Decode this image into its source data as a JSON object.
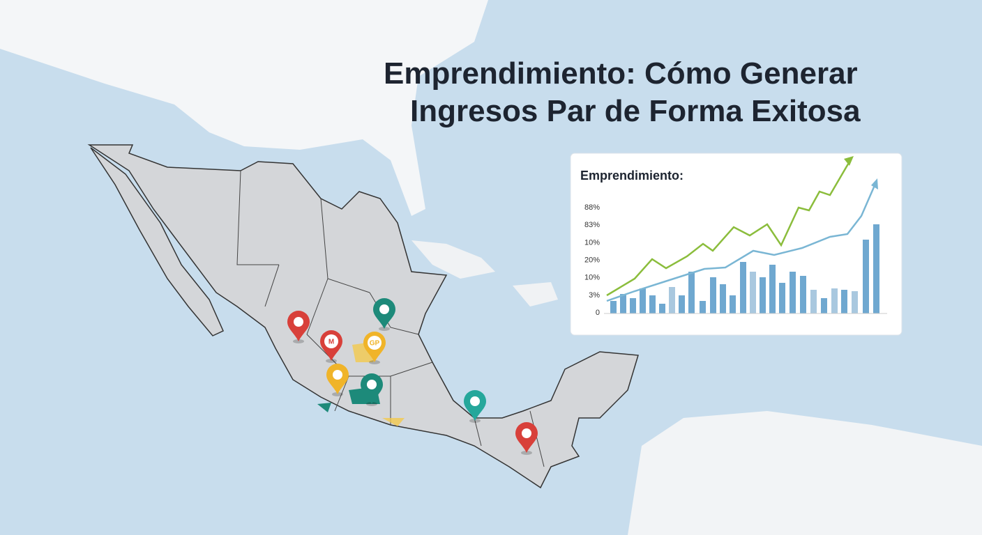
{
  "title": {
    "line1": "Emprendimiento: Cómo Generar",
    "line2": "Ingresos Par de Forma Exitosa"
  },
  "inset": {
    "title": "Emprendimiento:",
    "labels": [
      "88%",
      "83%",
      "10%",
      "20%",
      "10%",
      "3%",
      "0"
    ]
  },
  "pins": {
    "labels": [
      "M",
      "GP"
    ]
  }
}
